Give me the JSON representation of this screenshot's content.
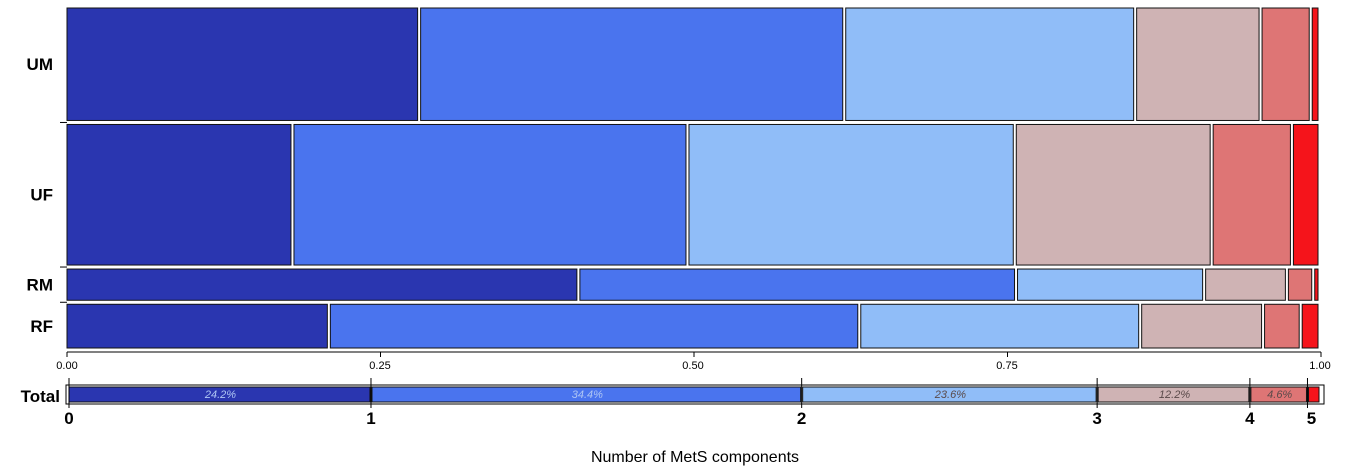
{
  "chart_data": {
    "type": "mosaic",
    "xlabel": "Number of MetS components",
    "xlim": [
      0,
      1
    ],
    "x_ticks": [
      "0.00",
      "0.25",
      "0.50",
      "0.75",
      "1.00"
    ],
    "categories": [
      "0",
      "1",
      "2",
      "3",
      "4",
      "5"
    ],
    "colors": [
      "#2A36B0",
      "#4A74EE",
      "#90BDF8",
      "#CFB3B4",
      "#DE7575",
      "#F5141B"
    ],
    "rows": [
      {
        "name": "UM",
        "weight": 0.36,
        "values": [
          0.282,
          0.339,
          0.232,
          0.1,
          0.04,
          0.007
        ]
      },
      {
        "name": "UF",
        "weight": 0.45,
        "values": [
          0.181,
          0.315,
          0.261,
          0.157,
          0.064,
          0.022
        ]
      },
      {
        "name": "RM",
        "weight": 0.1,
        "values": [
          0.409,
          0.349,
          0.15,
          0.066,
          0.021,
          0.005
        ]
      },
      {
        "name": "RF",
        "weight": 0.14,
        "values": [
          0.21,
          0.423,
          0.224,
          0.098,
          0.03,
          0.015
        ]
      }
    ],
    "total": {
      "name": "Total",
      "values": [
        0.242,
        0.344,
        0.236,
        0.122,
        0.046,
        0.01
      ],
      "labels": [
        "24.2%",
        "34.4%",
        "23.6%",
        "12.2%",
        "4.6%",
        ""
      ]
    }
  }
}
